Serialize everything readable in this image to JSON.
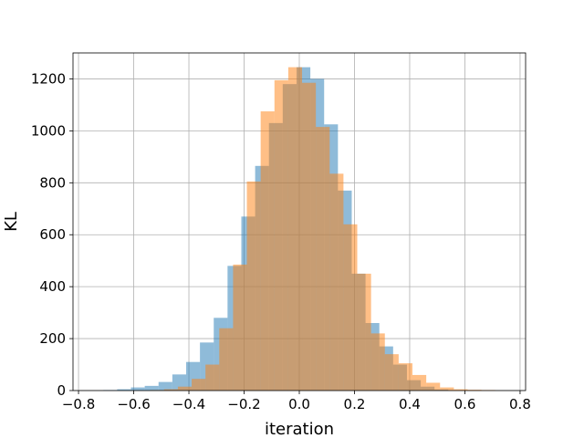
{
  "chart_data": {
    "type": "histogram",
    "title": "",
    "xlabel": "iteration",
    "ylabel": "KL",
    "xlim": [
      -0.82,
      0.82
    ],
    "ylim": [
      0,
      1300
    ],
    "x_ticks": [
      -0.8,
      -0.6,
      -0.4,
      -0.2,
      0.0,
      0.2,
      0.4,
      0.6,
      0.8
    ],
    "x_tick_labels": [
      "−0.8",
      "−0.6",
      "−0.4",
      "−0.2",
      "0.0",
      "0.2",
      "0.4",
      "0.6",
      "0.8"
    ],
    "y_ticks": [
      0,
      200,
      400,
      600,
      800,
      1000,
      1200
    ],
    "y_tick_labels": [
      "0",
      "200",
      "400",
      "600",
      "800",
      "1000",
      "1200"
    ],
    "grid": true,
    "legend": false,
    "series": [
      {
        "color": "#1f77b4",
        "alpha": 0.5,
        "bins": [
          {
            "x0": -0.71,
            "x1": -0.66,
            "value": 2
          },
          {
            "x0": -0.66,
            "x1": -0.61,
            "value": 5
          },
          {
            "x0": -0.61,
            "x1": -0.56,
            "value": 12
          },
          {
            "x0": -0.56,
            "x1": -0.51,
            "value": 18
          },
          {
            "x0": -0.51,
            "x1": -0.46,
            "value": 33
          },
          {
            "x0": -0.46,
            "x1": -0.41,
            "value": 62
          },
          {
            "x0": -0.41,
            "x1": -0.36,
            "value": 110
          },
          {
            "x0": -0.36,
            "x1": -0.31,
            "value": 185
          },
          {
            "x0": -0.31,
            "x1": -0.26,
            "value": 280
          },
          {
            "x0": -0.26,
            "x1": -0.21,
            "value": 480
          },
          {
            "x0": -0.21,
            "x1": -0.16,
            "value": 670
          },
          {
            "x0": -0.16,
            "x1": -0.11,
            "value": 865
          },
          {
            "x0": -0.11,
            "x1": -0.06,
            "value": 1030
          },
          {
            "x0": -0.06,
            "x1": -0.01,
            "value": 1180
          },
          {
            "x0": -0.01,
            "x1": 0.04,
            "value": 1245
          },
          {
            "x0": 0.04,
            "x1": 0.09,
            "value": 1200
          },
          {
            "x0": 0.09,
            "x1": 0.14,
            "value": 1025
          },
          {
            "x0": 0.14,
            "x1": 0.19,
            "value": 770
          },
          {
            "x0": 0.19,
            "x1": 0.24,
            "value": 450
          },
          {
            "x0": 0.24,
            "x1": 0.29,
            "value": 260
          },
          {
            "x0": 0.29,
            "x1": 0.34,
            "value": 170
          },
          {
            "x0": 0.34,
            "x1": 0.39,
            "value": 100
          },
          {
            "x0": 0.39,
            "x1": 0.44,
            "value": 40
          },
          {
            "x0": 0.44,
            "x1": 0.49,
            "value": 15
          },
          {
            "x0": 0.49,
            "x1": 0.54,
            "value": 4
          }
        ]
      },
      {
        "color": "#ff7f0e",
        "alpha": 0.5,
        "bins": [
          {
            "x0": -0.54,
            "x1": -0.49,
            "value": 2
          },
          {
            "x0": -0.49,
            "x1": -0.44,
            "value": 5
          },
          {
            "x0": -0.44,
            "x1": -0.39,
            "value": 15
          },
          {
            "x0": -0.39,
            "x1": -0.34,
            "value": 45
          },
          {
            "x0": -0.34,
            "x1": -0.29,
            "value": 100
          },
          {
            "x0": -0.29,
            "x1": -0.24,
            "value": 240
          },
          {
            "x0": -0.24,
            "x1": -0.19,
            "value": 485
          },
          {
            "x0": -0.19,
            "x1": -0.14,
            "value": 805
          },
          {
            "x0": -0.14,
            "x1": -0.09,
            "value": 1075
          },
          {
            "x0": -0.09,
            "x1": -0.04,
            "value": 1195
          },
          {
            "x0": -0.04,
            "x1": 0.01,
            "value": 1245
          },
          {
            "x0": 0.01,
            "x1": 0.06,
            "value": 1185
          },
          {
            "x0": 0.06,
            "x1": 0.11,
            "value": 1015
          },
          {
            "x0": 0.11,
            "x1": 0.16,
            "value": 835
          },
          {
            "x0": 0.16,
            "x1": 0.21,
            "value": 640
          },
          {
            "x0": 0.21,
            "x1": 0.26,
            "value": 450
          },
          {
            "x0": 0.26,
            "x1": 0.31,
            "value": 220
          },
          {
            "x0": 0.31,
            "x1": 0.36,
            "value": 140
          },
          {
            "x0": 0.36,
            "x1": 0.41,
            "value": 105
          },
          {
            "x0": 0.41,
            "x1": 0.46,
            "value": 60
          },
          {
            "x0": 0.46,
            "x1": 0.51,
            "value": 30
          },
          {
            "x0": 0.51,
            "x1": 0.56,
            "value": 12
          },
          {
            "x0": 0.56,
            "x1": 0.61,
            "value": 5
          },
          {
            "x0": 0.61,
            "x1": 0.66,
            "value": 3
          },
          {
            "x0": 0.66,
            "x1": 0.71,
            "value": 2
          }
        ]
      }
    ]
  }
}
